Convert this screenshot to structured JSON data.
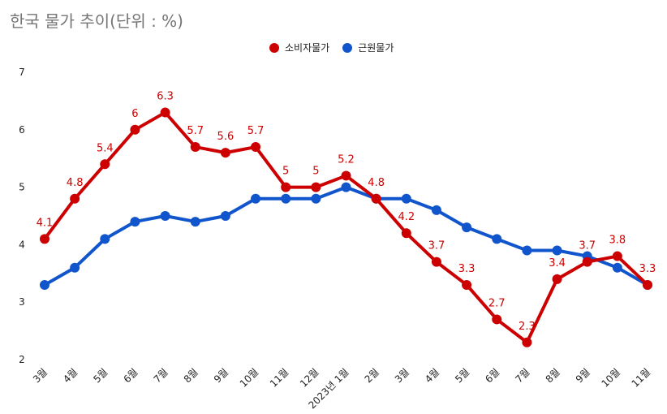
{
  "chart_data": {
    "type": "line",
    "title": "한국 물가 추이(단위 : %)",
    "categories": [
      "3월",
      "4월",
      "5월",
      "6월",
      "7월",
      "8월",
      "9월",
      "10월",
      "11월",
      "12월",
      "2023년 1월",
      "2월",
      "3월",
      "4월",
      "5월",
      "6월",
      "7월",
      "8월",
      "9월",
      "10월",
      "11월"
    ],
    "series": [
      {
        "name": "소비자물가",
        "color": "#cc0000",
        "data_labels": true,
        "values": [
          4.1,
          4.8,
          5.4,
          6,
          6.3,
          5.7,
          5.6,
          5.7,
          5,
          5,
          5.2,
          4.8,
          4.2,
          3.7,
          3.3,
          2.7,
          2.3,
          3.4,
          3.7,
          3.8,
          3.3
        ]
      },
      {
        "name": "근원물가",
        "color": "#1155cc",
        "data_labels": false,
        "values": [
          3.3,
          3.6,
          4.1,
          4.4,
          4.5,
          4.4,
          4.5,
          4.8,
          4.8,
          4.8,
          5.0,
          4.8,
          4.8,
          4.6,
          4.3,
          4.1,
          3.9,
          3.9,
          3.8,
          3.6,
          3.3
        ]
      }
    ],
    "ylim": [
      2,
      7
    ],
    "yticks": [
      2,
      3,
      4,
      5,
      6,
      7
    ],
    "grid": false,
    "legend": "top"
  }
}
